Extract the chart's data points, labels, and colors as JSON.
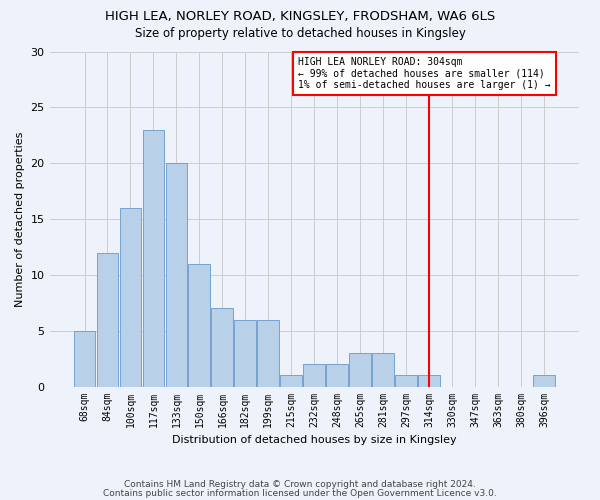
{
  "title": "HIGH LEA, NORLEY ROAD, KINGSLEY, FRODSHAM, WA6 6LS",
  "subtitle": "Size of property relative to detached houses in Kingsley",
  "xlabel": "Distribution of detached houses by size in Kingsley",
  "ylabel": "Number of detached properties",
  "footer1": "Contains HM Land Registry data © Crown copyright and database right 2024.",
  "footer2": "Contains public sector information licensed under the Open Government Licence v3.0.",
  "bar_labels": [
    "68sqm",
    "84sqm",
    "100sqm",
    "117sqm",
    "133sqm",
    "150sqm",
    "166sqm",
    "182sqm",
    "199sqm",
    "215sqm",
    "232sqm",
    "248sqm",
    "265sqm",
    "281sqm",
    "297sqm",
    "314sqm",
    "330sqm",
    "347sqm",
    "363sqm",
    "380sqm",
    "396sqm"
  ],
  "bar_values": [
    5,
    12,
    16,
    23,
    20,
    11,
    7,
    6,
    6,
    1,
    2,
    2,
    3,
    3,
    1,
    1,
    0,
    0,
    0,
    0,
    1
  ],
  "bar_color": "#b8d0e8",
  "bar_edge_color": "#6699cc",
  "vline_x": 15.0,
  "vline_color": "red",
  "annotation_text": "HIGH LEA NORLEY ROAD: 304sqm\n← 99% of detached houses are smaller (114)\n1% of semi-detached houses are larger (1) →",
  "annotation_box_color": "white",
  "annotation_box_edge": "red",
  "ylim": [
    0,
    30
  ],
  "yticks": [
    0,
    5,
    10,
    15,
    20,
    25,
    30
  ],
  "grid_color": "#cccccc",
  "bg_color": "#eef2fa"
}
